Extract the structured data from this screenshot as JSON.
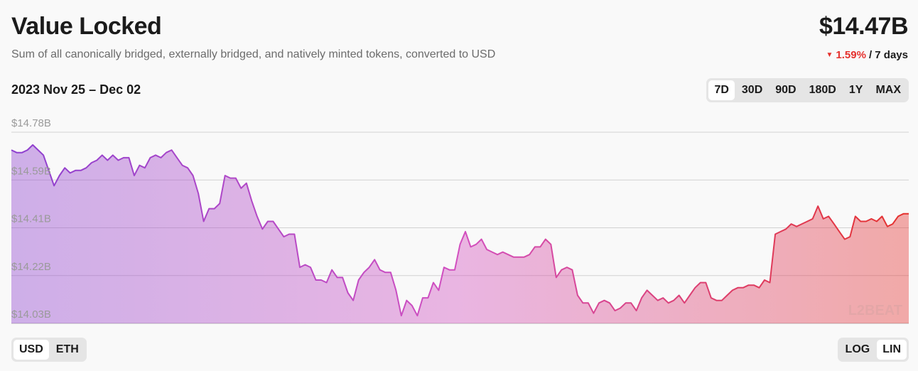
{
  "header": {
    "title": "Value Locked",
    "subtitle": "Sum of all canonically bridged, externally bridged, and natively minted tokens, converted to USD",
    "value": "$14.47B",
    "change_percent": "1.59%",
    "change_period": "/ 7 days",
    "change_direction": "down"
  },
  "range_label": "2023 Nov 25 – Dec 02",
  "time_ranges": [
    "7D",
    "30D",
    "90D",
    "180D",
    "1Y",
    "MAX"
  ],
  "time_range_active": "7D",
  "units": [
    "USD",
    "ETH"
  ],
  "unit_active": "USD",
  "scales": [
    "LOG",
    "LIN"
  ],
  "scale_active": "LIN",
  "watermark": "L2BEAT",
  "colors": {
    "gradient_start": "#8d3fcf",
    "gradient_mid": "#d24fbf",
    "gradient_end": "#e5312d",
    "down": "#e5312d"
  },
  "chart_data": {
    "type": "area",
    "title": "",
    "xlabel": "",
    "ylabel": "",
    "ylim": [
      14.03,
      14.78
    ],
    "yticks": [
      "$14.78B",
      "$14.59B",
      "$14.41B",
      "$14.22B",
      "$14.03B"
    ],
    "grid": true,
    "series": [
      {
        "unit": "billion USD",
        "values": [
          14.71,
          14.7,
          14.7,
          14.71,
          14.73,
          14.71,
          14.69,
          14.63,
          14.57,
          14.61,
          14.64,
          14.62,
          14.63,
          14.63,
          14.64,
          14.66,
          14.67,
          14.69,
          14.67,
          14.69,
          14.67,
          14.68,
          14.68,
          14.61,
          14.65,
          14.64,
          14.68,
          14.69,
          14.68,
          14.7,
          14.71,
          14.68,
          14.65,
          14.64,
          14.61,
          14.54,
          14.43,
          14.48,
          14.48,
          14.5,
          14.61,
          14.6,
          14.6,
          14.56,
          14.58,
          14.51,
          14.45,
          14.4,
          14.43,
          14.43,
          14.4,
          14.37,
          14.38,
          14.38,
          14.25,
          14.26,
          14.25,
          14.2,
          14.2,
          14.19,
          14.24,
          14.21,
          14.21,
          14.15,
          14.12,
          14.2,
          14.23,
          14.25,
          14.28,
          14.24,
          14.23,
          14.23,
          14.16,
          14.06,
          14.12,
          14.1,
          14.06,
          14.13,
          14.13,
          14.19,
          14.16,
          14.25,
          14.24,
          14.24,
          14.34,
          14.39,
          14.33,
          14.34,
          14.36,
          14.32,
          14.31,
          14.3,
          14.31,
          14.3,
          14.29,
          14.29,
          14.29,
          14.3,
          14.33,
          14.33,
          14.36,
          14.34,
          14.21,
          14.24,
          14.25,
          14.24,
          14.14,
          14.11,
          14.11,
          14.07,
          14.11,
          14.12,
          14.11,
          14.08,
          14.09,
          14.11,
          14.11,
          14.08,
          14.13,
          14.16,
          14.14,
          14.12,
          14.13,
          14.11,
          14.12,
          14.14,
          14.11,
          14.14,
          14.17,
          14.19,
          14.19,
          14.13,
          14.12,
          14.12,
          14.14,
          14.16,
          14.17,
          14.17,
          14.18,
          14.18,
          14.17,
          14.2,
          14.19,
          14.38,
          14.39,
          14.4,
          14.42,
          14.41,
          14.42,
          14.43,
          14.44,
          14.49,
          14.44,
          14.45,
          14.42,
          14.39,
          14.36,
          14.37,
          14.45,
          14.43,
          14.43,
          14.44,
          14.43,
          14.45,
          14.41,
          14.42,
          14.45,
          14.46,
          14.46
        ]
      }
    ]
  }
}
